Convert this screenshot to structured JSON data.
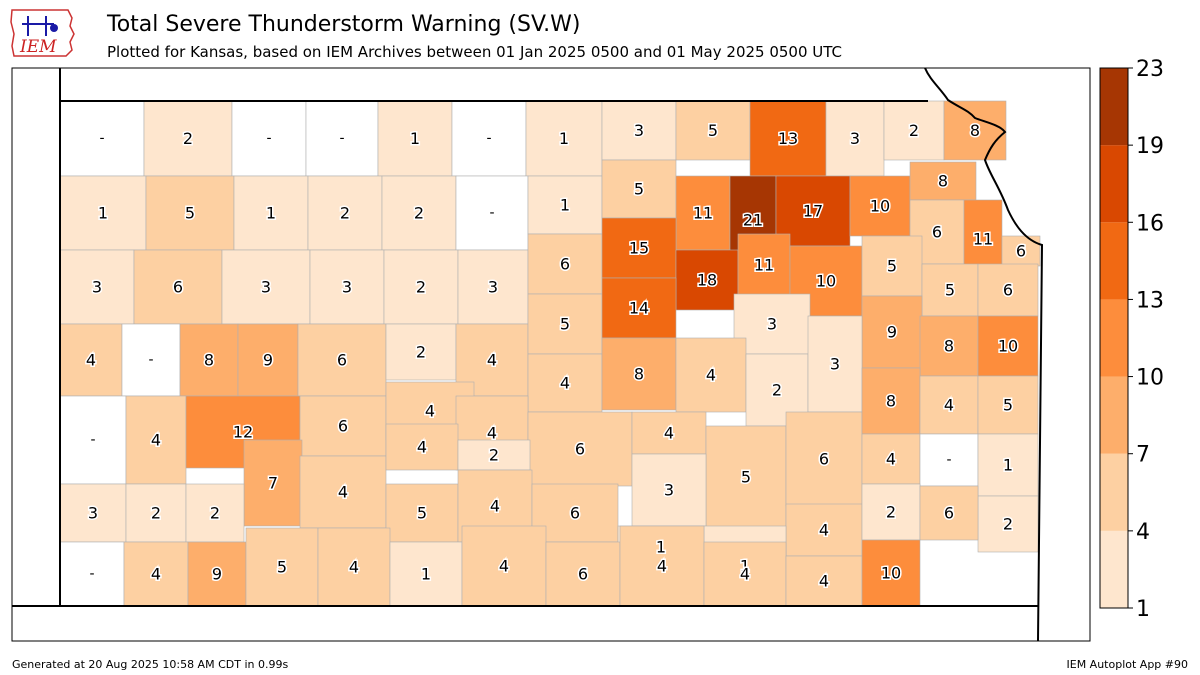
{
  "header": {
    "title": "Total Severe Thunderstorm Warning (SV.W)",
    "subtitle": "Plotted for Kansas, based on IEM Archives  between 01 Jan 2025 0500 and 01 May 2025 0500 UTC",
    "logo_text": "IEM"
  },
  "footer": {
    "generated": "Generated at 20 Aug 2025 10:58 AM CDT in 0.99s",
    "app": "IEM Autoplot App #90"
  },
  "colorbar": {
    "ticks": [
      "1",
      "4",
      "7",
      "10",
      "13",
      "16",
      "19",
      "23"
    ],
    "colors": [
      "#fee6ce",
      "#fdd0a2",
      "#fdae6b",
      "#fd8d3c",
      "#f16913",
      "#d94801",
      "#a63603"
    ]
  },
  "cells": [
    {
      "label": "-"
    },
    {
      "label": "2"
    },
    {
      "label": "-"
    },
    {
      "label": "-"
    },
    {
      "label": "1"
    },
    {
      "label": "-"
    },
    {
      "label": "1"
    },
    {
      "label": "3"
    },
    {
      "label": "5"
    },
    {
      "label": "13"
    },
    {
      "label": "3"
    },
    {
      "label": "2"
    },
    {
      "label": "8"
    },
    {
      "label": "1"
    },
    {
      "label": "5"
    },
    {
      "label": "1"
    },
    {
      "label": "2"
    },
    {
      "label": "2"
    },
    {
      "label": "-"
    },
    {
      "label": "1"
    },
    {
      "label": "5"
    },
    {
      "label": "11"
    },
    {
      "label": "21"
    },
    {
      "label": "17"
    },
    {
      "label": "10"
    },
    {
      "label": "8"
    },
    {
      "label": "6"
    },
    {
      "label": "11"
    },
    {
      "label": "6"
    },
    {
      "label": "3"
    },
    {
      "label": "6"
    },
    {
      "label": "3"
    },
    {
      "label": "3"
    },
    {
      "label": "2"
    },
    {
      "label": "3"
    },
    {
      "label": "6"
    },
    {
      "label": "15"
    },
    {
      "label": "18"
    },
    {
      "label": "11"
    },
    {
      "label": "10"
    },
    {
      "label": "5"
    },
    {
      "label": "5"
    },
    {
      "label": "6"
    },
    {
      "label": "4"
    },
    {
      "label": "-"
    },
    {
      "label": "8"
    },
    {
      "label": "9"
    },
    {
      "label": "6"
    },
    {
      "label": "2"
    },
    {
      "label": "4"
    },
    {
      "label": "5"
    },
    {
      "label": "14"
    },
    {
      "label": "3"
    },
    {
      "label": "9"
    },
    {
      "label": "8"
    },
    {
      "label": "10"
    },
    {
      "label": "4"
    },
    {
      "label": "8"
    },
    {
      "label": "4"
    },
    {
      "label": "2"
    },
    {
      "label": "3"
    },
    {
      "label": "-"
    },
    {
      "label": "4"
    },
    {
      "label": "12"
    },
    {
      "label": "6"
    },
    {
      "label": "4"
    },
    {
      "label": "4"
    },
    {
      "label": "6"
    },
    {
      "label": "4"
    },
    {
      "label": "5"
    },
    {
      "label": "6"
    },
    {
      "label": "8"
    },
    {
      "label": "4"
    },
    {
      "label": "5"
    },
    {
      "label": "7"
    },
    {
      "label": "4"
    },
    {
      "label": "4"
    },
    {
      "label": "2"
    },
    {
      "label": "3"
    },
    {
      "label": "4"
    },
    {
      "label": "-"
    },
    {
      "label": "1"
    },
    {
      "label": "3"
    },
    {
      "label": "2"
    },
    {
      "label": "2"
    },
    {
      "label": "5"
    },
    {
      "label": "4"
    },
    {
      "label": "6"
    },
    {
      "label": "4"
    },
    {
      "label": "2"
    },
    {
      "label": "2"
    },
    {
      "label": "6"
    },
    {
      "label": "1"
    },
    {
      "label": "1"
    },
    {
      "label": "-"
    },
    {
      "label": "4"
    },
    {
      "label": "9"
    },
    {
      "label": "5"
    },
    {
      "label": "4"
    },
    {
      "label": "1"
    },
    {
      "label": "4"
    },
    {
      "label": "6"
    },
    {
      "label": "4"
    },
    {
      "label": "4"
    },
    {
      "label": "4"
    },
    {
      "label": "10"
    }
  ]
}
